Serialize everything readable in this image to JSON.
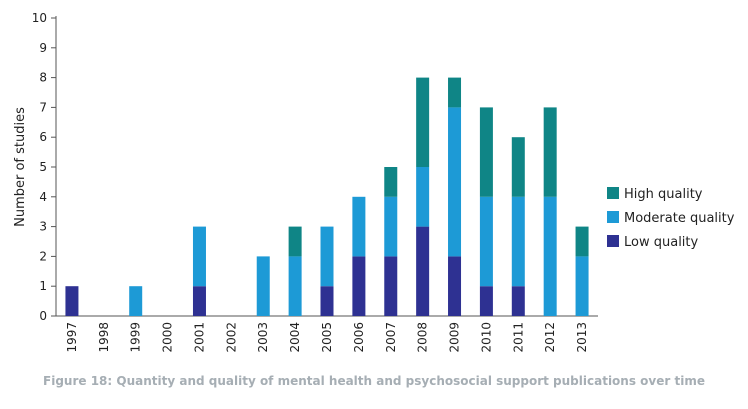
{
  "chart_data": {
    "type": "bar",
    "stacked": true,
    "categories": [
      "1997",
      "1998",
      "1999",
      "2000",
      "2001",
      "2002",
      "2003",
      "2004",
      "2005",
      "2006",
      "2007",
      "2008",
      "2009",
      "2010",
      "2011",
      "2012",
      "2013"
    ],
    "series": [
      {
        "name": "Low quality",
        "color": "#2e3192",
        "values": [
          1,
          0,
          0,
          0,
          1,
          0,
          0,
          0,
          1,
          2,
          2,
          3,
          2,
          1,
          1,
          0,
          0
        ]
      },
      {
        "name": "Moderate quality",
        "color": "#1d9ad6",
        "values": [
          0,
          0,
          1,
          0,
          2,
          0,
          2,
          2,
          2,
          2,
          2,
          2,
          5,
          3,
          3,
          4,
          2
        ]
      },
      {
        "name": "High quality",
        "color": "#0f8586",
        "values": [
          0,
          0,
          0,
          0,
          0,
          0,
          0,
          1,
          0,
          0,
          1,
          3,
          1,
          3,
          2,
          3,
          1
        ]
      }
    ],
    "ylabel": "Number of studies",
    "xlabel": "",
    "ylim": [
      0,
      10
    ],
    "yticks": [
      0,
      1,
      2,
      3,
      4,
      5,
      6,
      7,
      8,
      9,
      10
    ],
    "legend_position": "right",
    "grid": false
  },
  "caption": "Figure 18: Quantity and quality of mental health and psychosocial support publications over time"
}
